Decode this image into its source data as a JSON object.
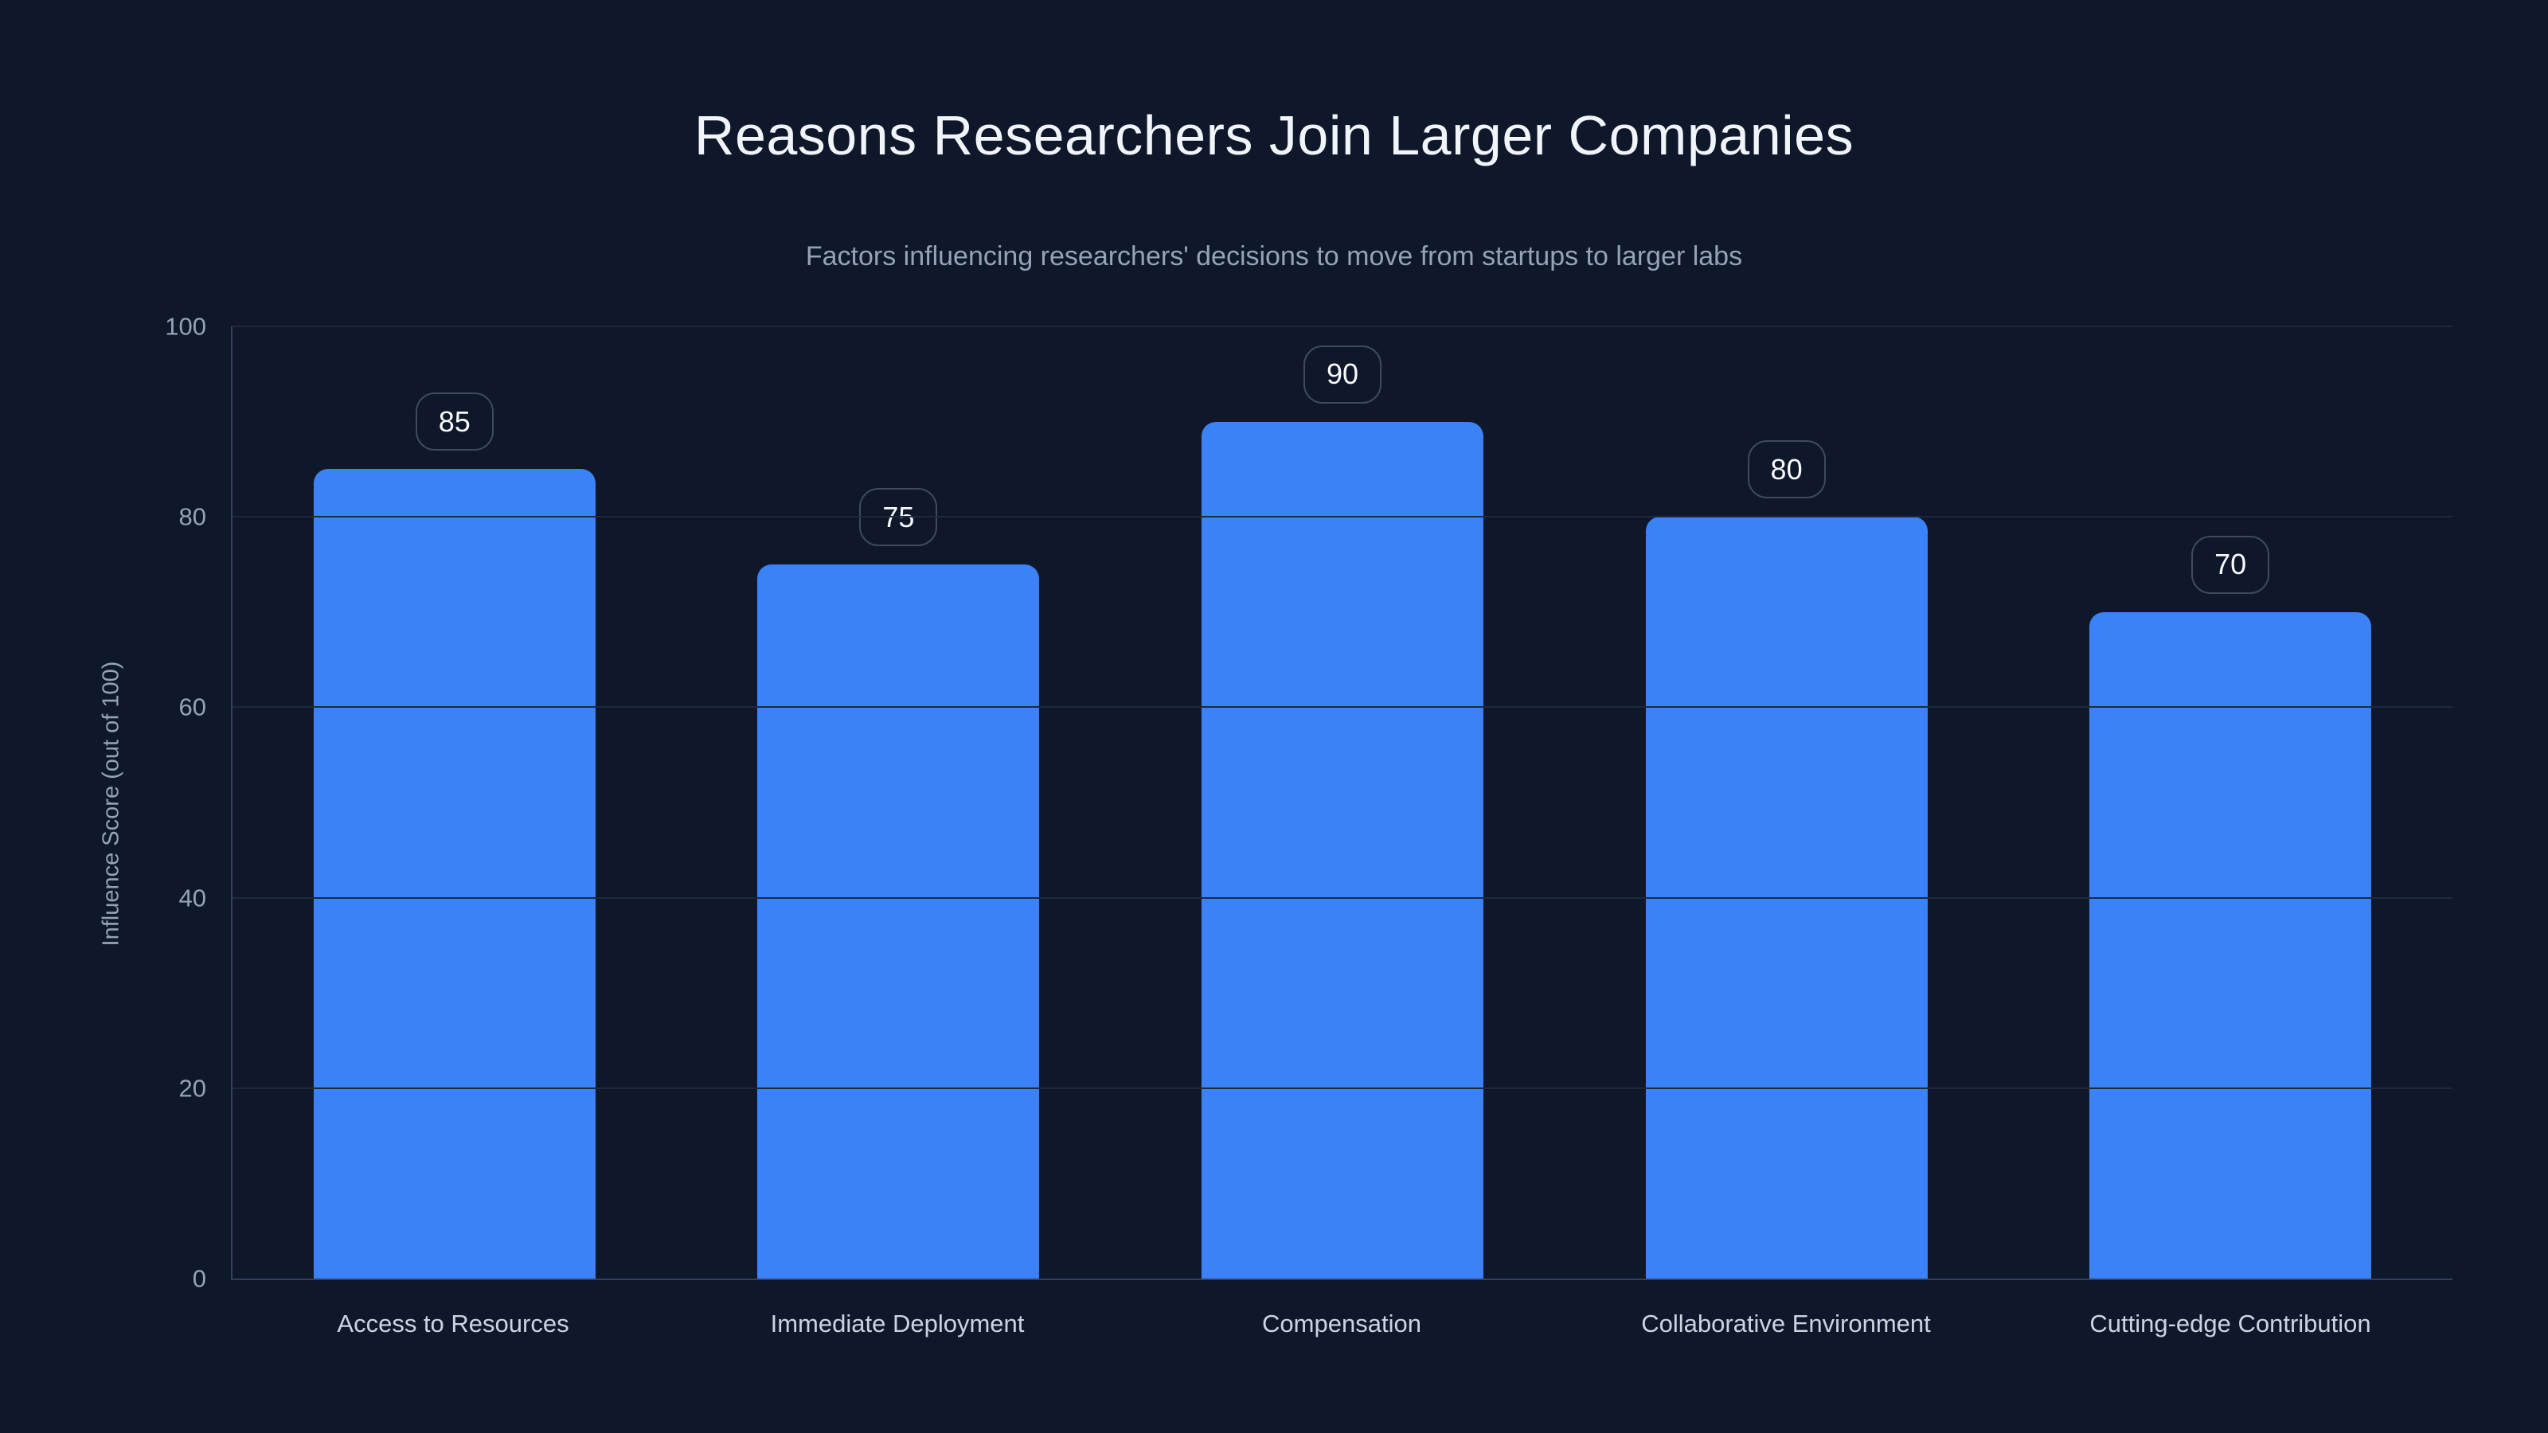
{
  "chart_data": {
    "type": "bar",
    "title": "Reasons Researchers Join Larger Companies",
    "subtitle": "Factors influencing researchers' decisions to move from startups to larger labs",
    "ylabel": "Influence Score (out of 100)",
    "xlabel": "",
    "categories": [
      "Access to Resources",
      "Immediate Deployment",
      "Compensation",
      "Collaborative Environment",
      "Cutting-edge Contribution"
    ],
    "values": [
      85,
      75,
      90,
      80,
      70
    ],
    "yticks": [
      0,
      20,
      40,
      60,
      80,
      100
    ],
    "ylim": [
      0,
      100
    ],
    "grid": true,
    "legend": "none",
    "bar_labels_shown": true
  },
  "colors": {
    "background": "#0f172a",
    "bar": "#3b82f6",
    "grid": "#1e293b",
    "axis": "#32405a",
    "tick_label": "#94a3b8",
    "category_label": "#cbd5e1",
    "title": "#f1f5f9",
    "subtitle": "#94a3b8",
    "badge_border": "#3f4a5e",
    "badge_text": "#f8fafc"
  }
}
